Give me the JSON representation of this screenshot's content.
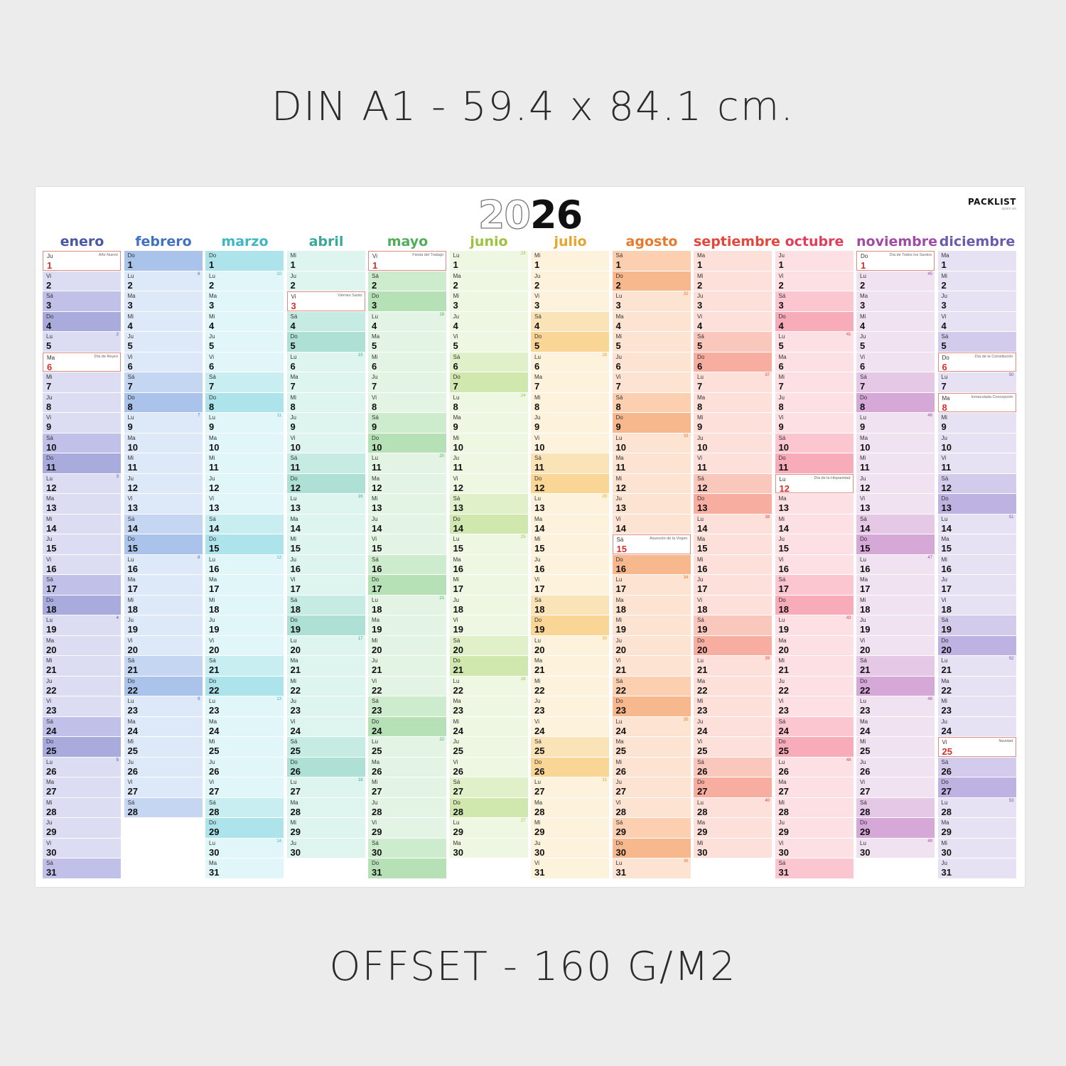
{
  "top_caption": "DIN A1 - 59.4 x 84.1 cm.",
  "bottom_caption": "OFFSET - 160 G/M2",
  "poster": {
    "year_light": "20",
    "year_dark": "26",
    "brand": "PACKLIST",
    "brand_sub": "spain.es"
  },
  "weekday_abbr": [
    "Lu",
    "Ma",
    "Mi",
    "Ju",
    "Vi",
    "Sá",
    "Do"
  ],
  "months": [
    {
      "name": "enero",
      "days": 31,
      "start": 3,
      "color": "#4a57a6",
      "base": "#dcdcf2",
      "sat": "#c0c0e8",
      "sun": "#a9abdc",
      "holidays": {
        "1": "Año Nuevo",
        "6": "Día de Reyes"
      }
    },
    {
      "name": "febrero",
      "days": 28,
      "start": 6,
      "color": "#3f73c2",
      "base": "#dde8f8",
      "sat": "#c4d6f2",
      "sun": "#a9c3ea",
      "holidays": {}
    },
    {
      "name": "marzo",
      "days": 31,
      "start": 6,
      "color": "#3bb8c4",
      "base": "#e0f6f8",
      "sat": "#c8eef2",
      "sun": "#ade3ea",
      "holidays": {}
    },
    {
      "name": "abril",
      "days": 30,
      "start": 2,
      "color": "#3aa89a",
      "base": "#def4ef",
      "sat": "#c6ebe3",
      "sun": "#aee0d6",
      "holidays": {
        "3": "Viernes Santo"
      }
    },
    {
      "name": "mayo",
      "days": 31,
      "start": 4,
      "color": "#4fae5a",
      "base": "#e4f4e4",
      "sat": "#cdebcd",
      "sun": "#b6e1b6",
      "holidays": {
        "1": "Fiesta del Trabajo"
      }
    },
    {
      "name": "junio",
      "days": 30,
      "start": 0,
      "color": "#9ac43e",
      "base": "#eef7e2",
      "sat": "#e0f0c9",
      "sun": "#d0e7ad",
      "holidays": {}
    },
    {
      "name": "julio",
      "days": 31,
      "start": 2,
      "color": "#e8a52b",
      "base": "#fdf2dc",
      "sat": "#fbe3b8",
      "sun": "#f9d596",
      "holidays": {}
    },
    {
      "name": "agosto",
      "days": 31,
      "start": 5,
      "color": "#e8792d",
      "base": "#fde4d2",
      "sat": "#fbcfb0",
      "sun": "#f8b88e",
      "holidays": {
        "15": "Asunción de la Virgen"
      }
    },
    {
      "name": "septiembre",
      "days": 30,
      "start": 1,
      "color": "#e5463c",
      "base": "#fde0da",
      "sat": "#fac7bd",
      "sun": "#f7ad9f",
      "holidays": {}
    },
    {
      "name": "octubre",
      "days": 31,
      "start": 3,
      "color": "#e23e5a",
      "base": "#fde0e4",
      "sat": "#fbc6cf",
      "sun": "#f8abb8",
      "holidays": {
        "12": "Día de la Hispanidad"
      }
    },
    {
      "name": "noviembre",
      "days": 30,
      "start": 6,
      "color": "#a24aa4",
      "base": "#f1e2f1",
      "sat": "#e4c8e6",
      "sun": "#d5a8d8",
      "holidays": {
        "1": "Día de Todos los Santos"
      }
    },
    {
      "name": "diciembre",
      "days": 31,
      "start": 1,
      "color": "#6b5bb0",
      "base": "#e6e2f4",
      "sat": "#d2cbec",
      "sun": "#bdb2e2",
      "holidays": {
        "6": "Día de la Constitución",
        "8": "Inmaculada Concepción",
        "25": "Navidad"
      }
    }
  ]
}
